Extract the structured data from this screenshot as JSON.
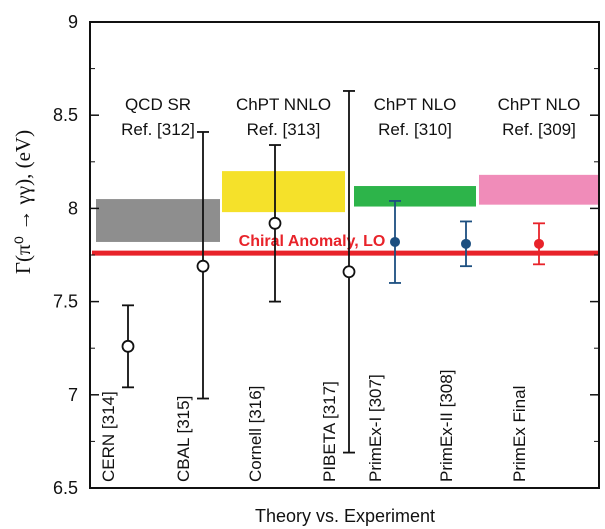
{
  "chart_data": {
    "type": "scatter",
    "xlabel": "Theory vs. Experiment",
    "ylabel": "Γ(π⁰ → γγ), (eV)",
    "ylim": [
      6.5,
      9.0
    ],
    "yticks": [
      "6.5",
      "7",
      "7.5",
      "8",
      "8.5",
      "9"
    ],
    "grid": false,
    "reference_line": {
      "label": "Chiral Anomaly, LO",
      "value": 7.76,
      "color": "#e8232a"
    },
    "theory_bands": [
      {
        "label_line1": "QCD SR",
        "label_line2": "Ref. [312]",
        "ymin": 7.82,
        "ymax": 8.05,
        "color": "#8e8e8e"
      },
      {
        "label_line1": "ChPT NNLO",
        "label_line2": "Ref. [313]",
        "ymin": 7.98,
        "ymax": 8.2,
        "color": "#f5e12a"
      },
      {
        "label_line1": "ChPT NLO",
        "label_line2": "Ref. [310]",
        "ymin": 8.01,
        "ymax": 8.12,
        "color": "#2db44a"
      },
      {
        "label_line1": "ChPT NLO",
        "label_line2": "Ref. [309]",
        "ymin": 8.02,
        "ymax": 8.18,
        "color": "#f08cb9"
      }
    ],
    "experiments": [
      {
        "label": "CERN [314]",
        "value": 7.26,
        "err_low": 7.04,
        "err_high": 7.48,
        "marker": "open",
        "color": "#111111"
      },
      {
        "label": "CBAL [315]",
        "value": 7.69,
        "err_low": 6.98,
        "err_high": 8.41,
        "marker": "open",
        "color": "#111111"
      },
      {
        "label": "Cornell [316]",
        "value": 7.92,
        "err_low": 7.5,
        "err_high": 8.34,
        "marker": "open",
        "color": "#111111"
      },
      {
        "label": "PIBETA [317]",
        "value": 7.66,
        "err_low": 6.69,
        "err_high": 8.63,
        "marker": "open",
        "color": "#111111"
      },
      {
        "label": "PrimEx-I [307]",
        "value": 7.82,
        "err_low": 7.6,
        "err_high": 8.04,
        "marker": "filled",
        "color": "#1c4f80"
      },
      {
        "label": "PrimEx-II [308]",
        "value": 7.81,
        "err_low": 7.69,
        "err_high": 7.93,
        "marker": "filled",
        "color": "#1c4f80"
      },
      {
        "label": "PrimEx  Final",
        "value": 7.81,
        "err_low": 7.7,
        "err_high": 7.92,
        "marker": "filled",
        "color": "#e8232a"
      }
    ]
  }
}
